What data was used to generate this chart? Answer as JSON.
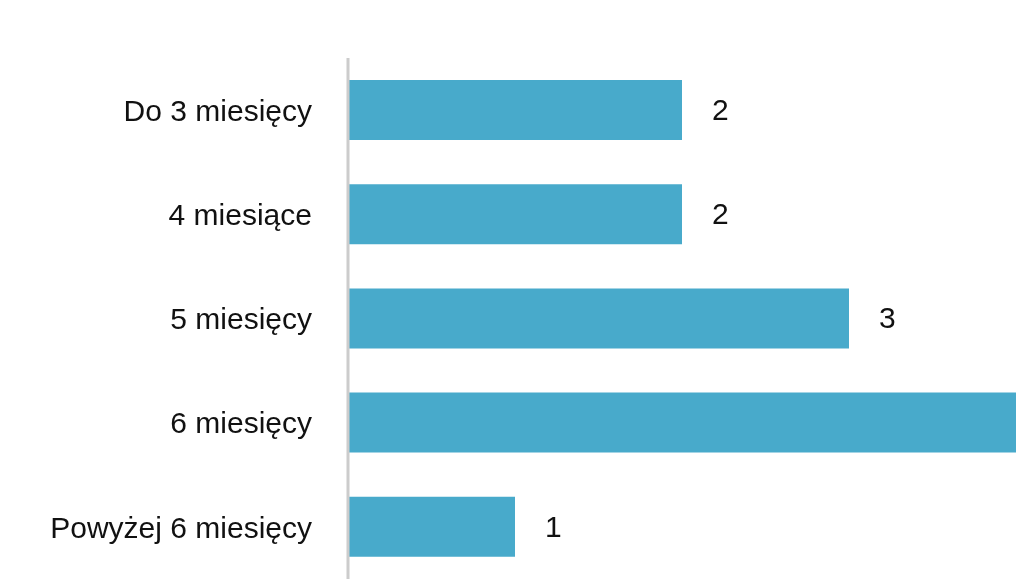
{
  "chart_data": {
    "type": "bar",
    "orientation": "horizontal",
    "categories": [
      "Do 3 miesięcy",
      "4 miesiące",
      "5 miesięcy",
      "6 miesięcy",
      "Powyżej 6 miesięcy"
    ],
    "values": [
      2,
      2,
      3,
      4,
      1
    ],
    "value_labels": [
      "2",
      "2",
      "3",
      null,
      "1"
    ],
    "color": "#48aacb",
    "grid": false,
    "legend": false
  }
}
